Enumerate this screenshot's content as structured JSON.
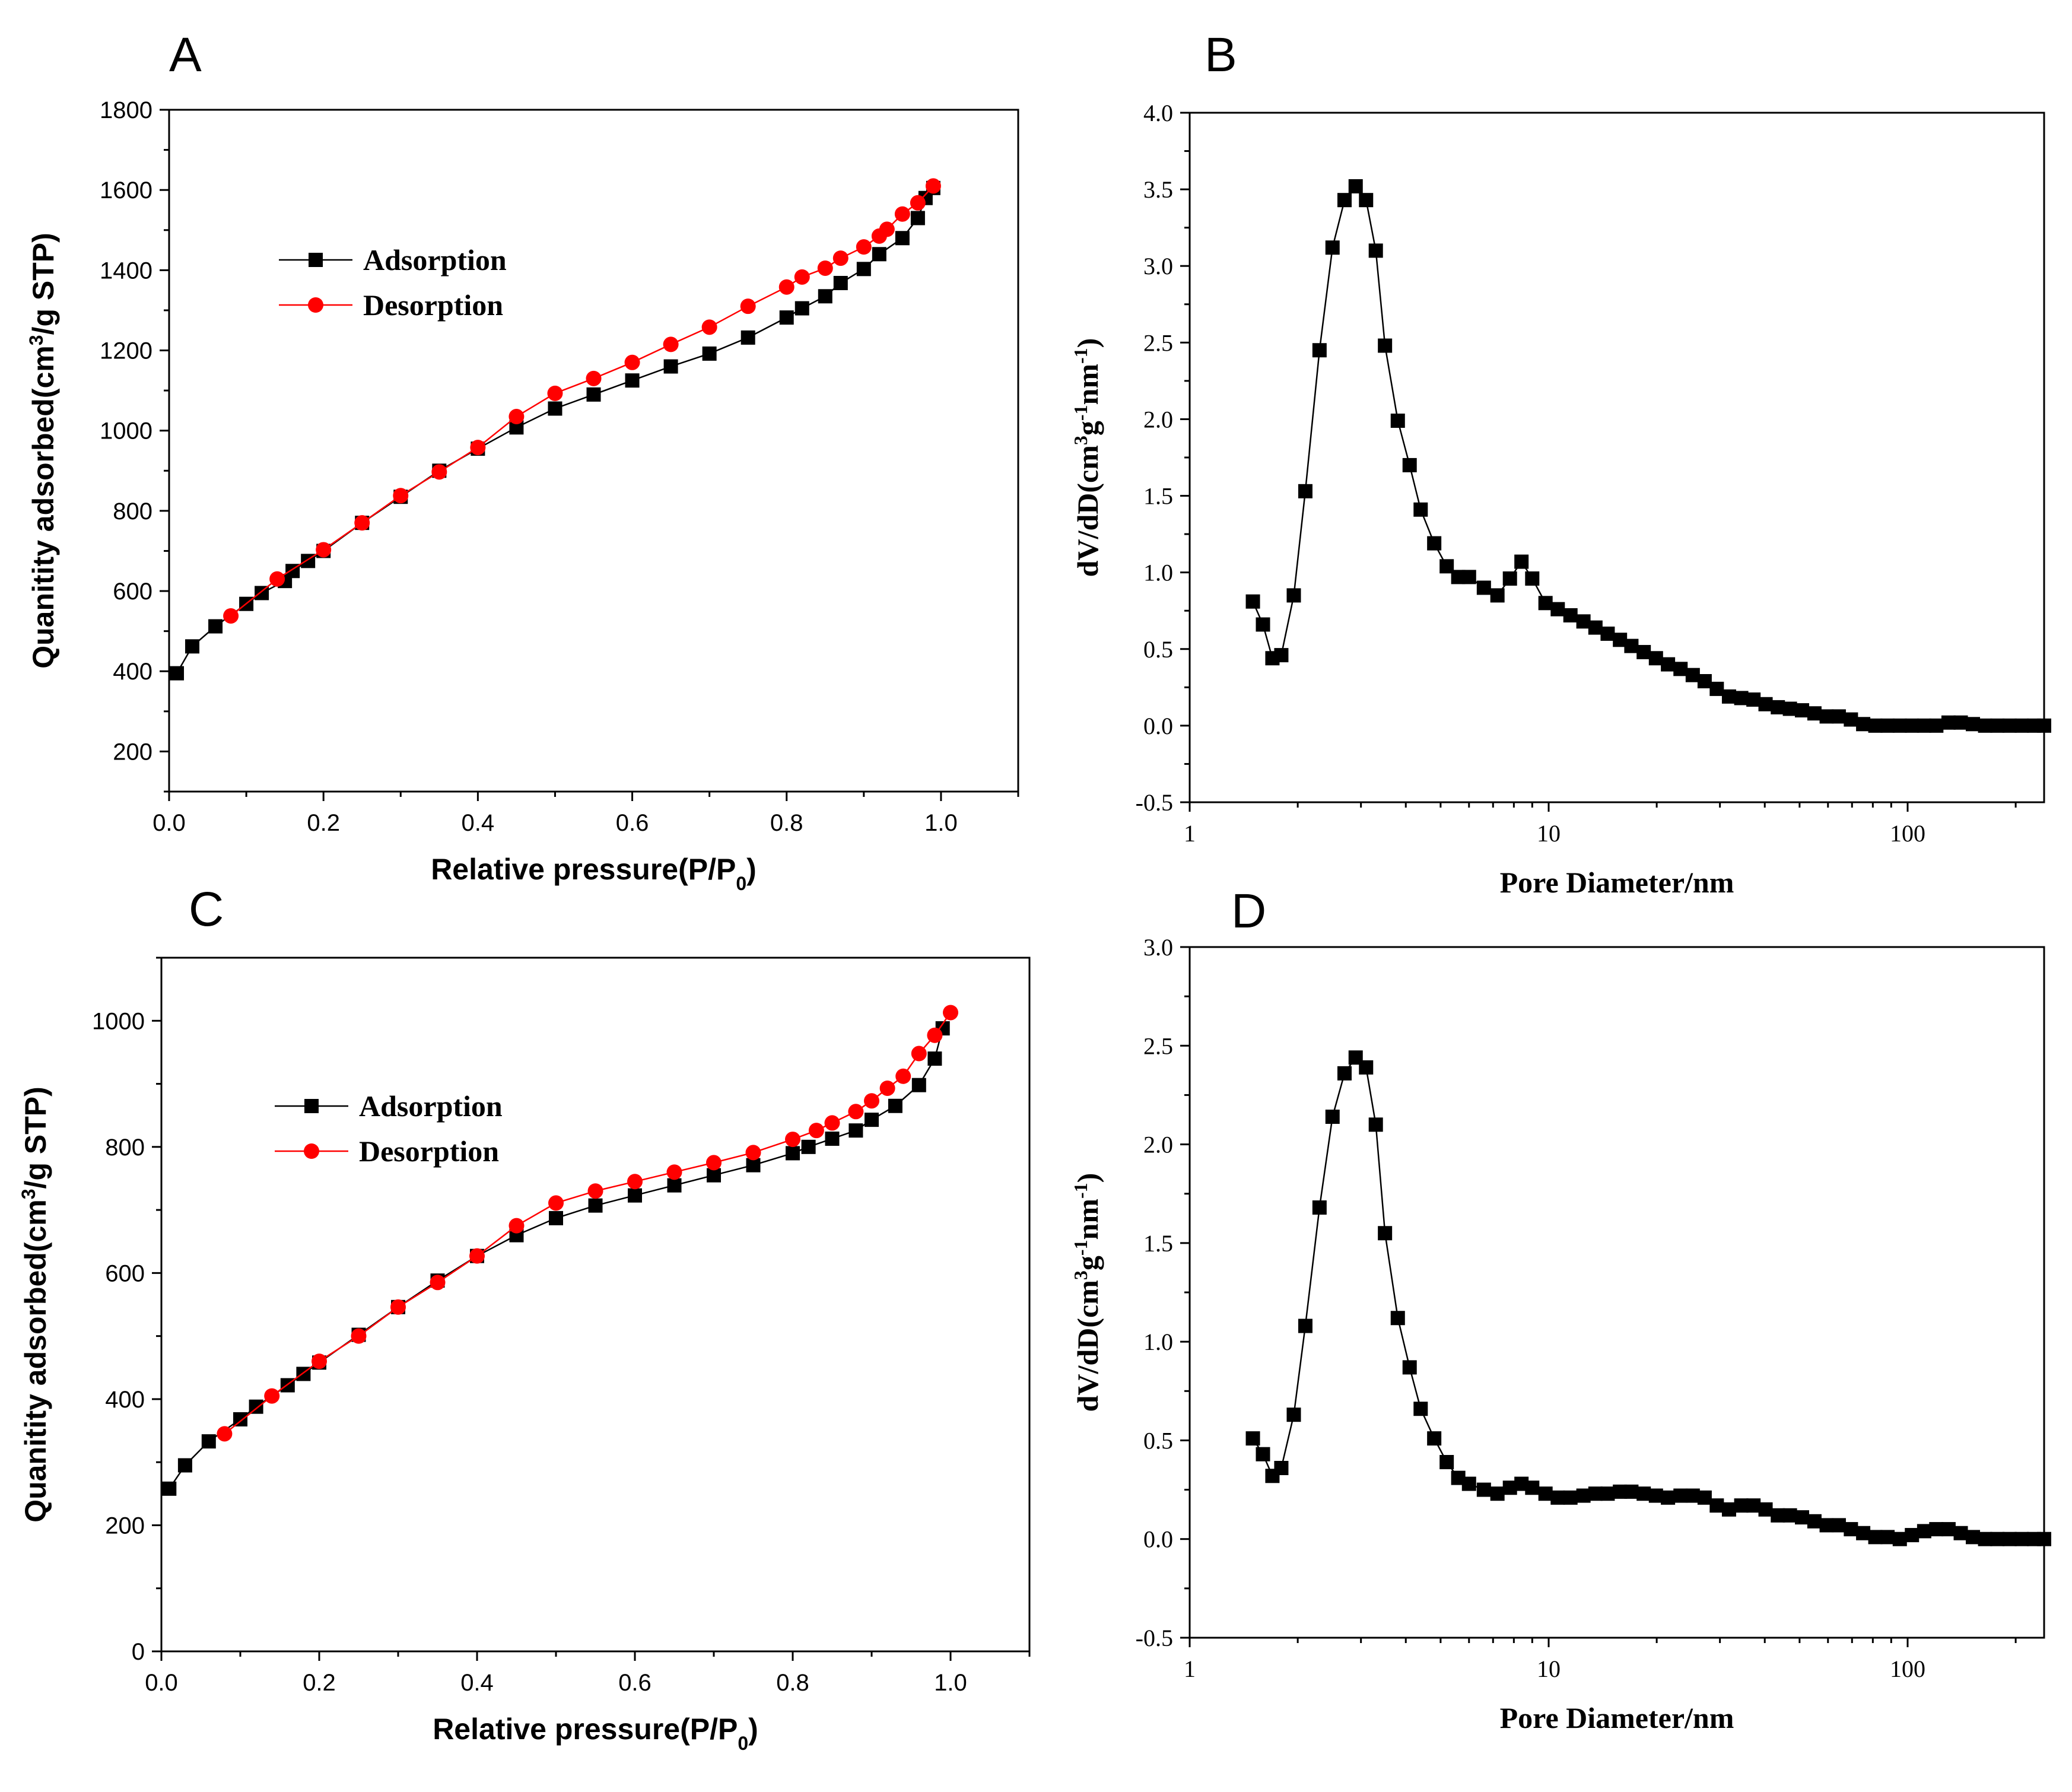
{
  "chart_data": [
    {
      "panel_label": "A",
      "type": "scatter",
      "xlabel": "Relative pressure(P/P0)",
      "xlabel_main": "Relative pressure(P/P",
      "xlabel_sub": "0",
      "xlabel_tail": ")",
      "ylabel": "Quanitity adsorbed(cm3/g STP)",
      "ylabel_pre": "Quanitity adsorbed(cm",
      "ylabel_sup": "3",
      "ylabel_post": "/g STP)",
      "xlim": [
        0.0,
        1.1
      ],
      "ylim": [
        100,
        1800
      ],
      "xticks": [
        0.0,
        0.2,
        0.4,
        0.6,
        0.8,
        1.0
      ],
      "xtick_labels": [
        "0.0",
        "0.2",
        "0.4",
        "0.6",
        "0.8",
        "1.0"
      ],
      "yticks": [
        200,
        400,
        600,
        800,
        1000,
        1200,
        1400,
        1600,
        1800
      ],
      "ytick_labels": [
        "200",
        "400",
        "600",
        "800",
        "1000",
        "1200",
        "1400",
        "1600",
        "1800"
      ],
      "legend_position": "upper-left",
      "series": [
        {
          "name": "Adsorption",
          "marker": "square",
          "color": "#000000",
          "x": [
            0.01,
            0.03,
            0.06,
            0.1,
            0.12,
            0.15,
            0.16,
            0.18,
            0.2,
            0.25,
            0.3,
            0.35,
            0.4,
            0.45,
            0.5,
            0.55,
            0.6,
            0.65,
            0.7,
            0.75,
            0.8,
            0.82,
            0.85,
            0.87,
            0.9,
            0.92,
            0.95,
            0.97,
            0.98,
            0.99
          ],
          "y": [
            395,
            462,
            512,
            568,
            595,
            625,
            650,
            675,
            700,
            770,
            835,
            900,
            955,
            1008,
            1055,
            1090,
            1125,
            1160,
            1192,
            1232,
            1282,
            1305,
            1335,
            1368,
            1403,
            1440,
            1480,
            1530,
            1580,
            1605
          ]
        },
        {
          "name": "Desorption",
          "marker": "circle",
          "color": "#ff0000",
          "x": [
            0.08,
            0.14,
            0.2,
            0.25,
            0.3,
            0.35,
            0.4,
            0.45,
            0.5,
            0.55,
            0.6,
            0.65,
            0.7,
            0.75,
            0.8,
            0.82,
            0.85,
            0.87,
            0.9,
            0.92,
            0.93,
            0.95,
            0.97,
            0.99
          ],
          "y": [
            538,
            630,
            703,
            770,
            838,
            897,
            958,
            1035,
            1093,
            1130,
            1170,
            1215,
            1258,
            1310,
            1358,
            1383,
            1405,
            1430,
            1458,
            1485,
            1502,
            1540,
            1568,
            1610
          ]
        }
      ]
    },
    {
      "panel_label": "B",
      "type": "scatter",
      "xlabel": "Pore Diameter/nm",
      "ylabel": "dV/dD(cm3g-1nm-1)",
      "ylabel_pre": "dV/dD(cm",
      "ylabel_sup1": "3",
      "ylabel_mid": "g",
      "ylabel_sup2": "-1",
      "ylabel_mid2": "nm",
      "ylabel_sup3": "-1",
      "ylabel_post": ")",
      "xscale": "log",
      "xlim": [
        1,
        240
      ],
      "ylim": [
        -0.5,
        4.0
      ],
      "xticks": [
        1,
        10,
        100
      ],
      "xtick_labels": [
        "1",
        "10",
        "100"
      ],
      "yticks": [
        -0.5,
        0.0,
        0.5,
        1.0,
        1.5,
        2.0,
        2.5,
        3.0,
        3.5,
        4.0
      ],
      "ytick_labels": [
        "-0.5",
        "0.0",
        "0.5",
        "1.0",
        "1.5",
        "2.0",
        "2.5",
        "3.0",
        "3.5",
        "4.0"
      ],
      "series": [
        {
          "marker": "square",
          "color": "#000000",
          "x": [
            1.5,
            1.6,
            1.7,
            1.8,
            1.95,
            2.1,
            2.3,
            2.5,
            2.7,
            2.9,
            3.1,
            3.3,
            3.5,
            3.8,
            4.1,
            4.4,
            4.8,
            5.2,
            5.6,
            6.0,
            6.6,
            7.2,
            7.8,
            8.4,
            9.0,
            9.8,
            10.6,
            11.5,
            12.5,
            13.5,
            14.6,
            15.8,
            17.0,
            18.4,
            19.9,
            21.5,
            23.3,
            25.2,
            27.2,
            29.4,
            31.8,
            34.4,
            37.2,
            40.2,
            43.5,
            47.0,
            50.8,
            55.0,
            59.5,
            64.3,
            69.5,
            75.2,
            81.3,
            87.9,
            95.1,
            102.8,
            111.2,
            120.2,
            130.0,
            140.6,
            152.0,
            164.4,
            177.8,
            192.3,
            208.0,
            225.0,
            240.0
          ],
          "y": [
            0.81,
            0.66,
            0.44,
            0.46,
            0.85,
            1.53,
            2.45,
            3.12,
            3.43,
            3.52,
            3.43,
            3.1,
            2.48,
            1.99,
            1.7,
            1.41,
            1.19,
            1.04,
            0.97,
            0.97,
            0.9,
            0.85,
            0.96,
            1.07,
            0.96,
            0.8,
            0.76,
            0.72,
            0.68,
            0.64,
            0.6,
            0.56,
            0.52,
            0.48,
            0.44,
            0.4,
            0.37,
            0.33,
            0.29,
            0.24,
            0.19,
            0.18,
            0.17,
            0.14,
            0.12,
            0.11,
            0.1,
            0.08,
            0.06,
            0.06,
            0.04,
            0.01,
            0.0,
            0.0,
            0.0,
            0.0,
            0.0,
            0.0,
            0.02,
            0.02,
            0.01,
            0.0,
            0.0,
            0.0,
            0.0,
            0.0,
            0.0
          ]
        }
      ]
    },
    {
      "panel_label": "C",
      "type": "scatter",
      "xlabel": "Relative pressure(P/P0)",
      "xlabel_main": "Relative pressure(P/P",
      "xlabel_sub": "0",
      "xlabel_tail": ")",
      "ylabel": "Quanitity adsorbed(cm3/g STP)",
      "ylabel_pre": "Quanitity adsorbed(cm",
      "ylabel_sup": "3",
      "ylabel_post": "/g STP)",
      "xlim": [
        0.0,
        1.1
      ],
      "ylim": [
        0,
        1100
      ],
      "xticks": [
        0.0,
        0.2,
        0.4,
        0.6,
        0.8,
        1.0
      ],
      "xtick_labels": [
        "0.0",
        "0.2",
        "0.4",
        "0.6",
        "0.8",
        "1.0"
      ],
      "yticks": [
        0,
        200,
        400,
        600,
        800,
        1000
      ],
      "ytick_labels": [
        "0",
        "200",
        "400",
        "600",
        "800",
        "1000"
      ],
      "legend_position": "upper-left",
      "series": [
        {
          "name": "Adsorption",
          "marker": "square",
          "color": "#000000",
          "x": [
            0.01,
            0.03,
            0.06,
            0.1,
            0.12,
            0.16,
            0.18,
            0.2,
            0.25,
            0.3,
            0.35,
            0.4,
            0.45,
            0.5,
            0.55,
            0.6,
            0.65,
            0.7,
            0.75,
            0.8,
            0.82,
            0.85,
            0.88,
            0.9,
            0.93,
            0.96,
            0.98,
            0.99
          ],
          "y": [
            258,
            295,
            333,
            368,
            388,
            422,
            440,
            458,
            502,
            546,
            588,
            627,
            660,
            687,
            707,
            723,
            739,
            755,
            771,
            790,
            800,
            813,
            826,
            843,
            865,
            898,
            940,
            988
          ]
        },
        {
          "name": "Desorption",
          "marker": "circle",
          "color": "#ff0000",
          "x": [
            0.08,
            0.14,
            0.2,
            0.25,
            0.3,
            0.35,
            0.4,
            0.45,
            0.5,
            0.55,
            0.6,
            0.65,
            0.7,
            0.75,
            0.8,
            0.83,
            0.85,
            0.88,
            0.9,
            0.92,
            0.94,
            0.96,
            0.98,
            1.0
          ],
          "y": [
            345,
            405,
            460,
            500,
            546,
            585,
            627,
            675,
            711,
            730,
            745,
            760,
            775,
            791,
            812,
            826,
            838,
            856,
            873,
            893,
            912,
            948,
            977,
            1013
          ]
        }
      ]
    },
    {
      "panel_label": "D",
      "type": "scatter",
      "xlabel": "Pore Diameter/nm",
      "ylabel": "dV/dD(cm3g-1nm-1)",
      "ylabel_pre": "dV/dD(cm",
      "ylabel_sup1": "3",
      "ylabel_mid": "g",
      "ylabel_sup2": "-1",
      "ylabel_mid2": "nm",
      "ylabel_sup3": "-1",
      "ylabel_post": ")",
      "xscale": "log",
      "xlim": [
        1,
        240
      ],
      "ylim": [
        -0.5,
        3.0
      ],
      "xticks": [
        1,
        10,
        100
      ],
      "xtick_labels": [
        "1",
        "10",
        "100"
      ],
      "yticks": [
        -0.5,
        0.0,
        0.5,
        1.0,
        1.5,
        2.0,
        2.5,
        3.0
      ],
      "ytick_labels": [
        "-0.5",
        "0.0",
        "0.5",
        "1.0",
        "1.5",
        "2.0",
        "2.5",
        "3.0"
      ],
      "series": [
        {
          "marker": "square",
          "color": "#000000",
          "x": [
            1.5,
            1.6,
            1.7,
            1.8,
            1.95,
            2.1,
            2.3,
            2.5,
            2.7,
            2.9,
            3.1,
            3.3,
            3.5,
            3.8,
            4.1,
            4.4,
            4.8,
            5.2,
            5.6,
            6.0,
            6.6,
            7.2,
            7.8,
            8.4,
            9.0,
            9.8,
            10.6,
            11.5,
            12.5,
            13.5,
            14.6,
            15.8,
            17.0,
            18.4,
            19.9,
            21.5,
            23.3,
            25.2,
            27.2,
            29.4,
            31.8,
            34.4,
            37.2,
            40.2,
            43.5,
            47.0,
            50.8,
            55.0,
            59.5,
            64.3,
            69.5,
            75.2,
            81.3,
            87.9,
            95.1,
            102.8,
            111.2,
            120.2,
            130.0,
            140.6,
            152.0,
            164.4,
            177.8,
            192.3,
            208.0,
            225.0,
            240.0
          ],
          "y": [
            0.51,
            0.43,
            0.32,
            0.36,
            0.63,
            1.08,
            1.68,
            2.14,
            2.36,
            2.44,
            2.39,
            2.1,
            1.55,
            1.12,
            0.87,
            0.66,
            0.51,
            0.39,
            0.31,
            0.28,
            0.25,
            0.23,
            0.26,
            0.28,
            0.26,
            0.23,
            0.21,
            0.21,
            0.22,
            0.23,
            0.23,
            0.24,
            0.24,
            0.23,
            0.22,
            0.21,
            0.22,
            0.22,
            0.21,
            0.17,
            0.15,
            0.17,
            0.17,
            0.15,
            0.12,
            0.12,
            0.11,
            0.09,
            0.07,
            0.07,
            0.05,
            0.03,
            0.01,
            0.01,
            0.0,
            0.02,
            0.04,
            0.05,
            0.05,
            0.03,
            0.01,
            0.0,
            0.0,
            0.0,
            0.0,
            0.0,
            0.0
          ]
        }
      ]
    }
  ]
}
